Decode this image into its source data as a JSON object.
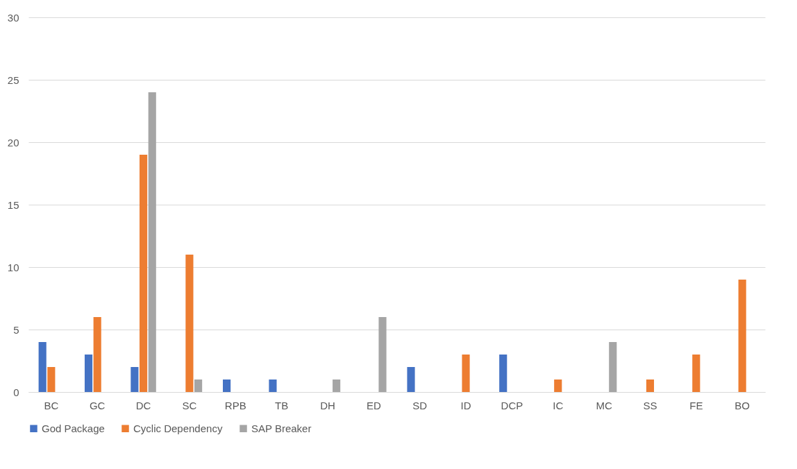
{
  "chart_data": {
    "type": "bar",
    "categories": [
      "BC",
      "GC",
      "DC",
      "SC",
      "RPB",
      "TB",
      "DH",
      "ED",
      "SD",
      "ID",
      "DCP",
      "IC",
      "MC",
      "SS",
      "FE",
      "BO"
    ],
    "series": [
      {
        "name": "God Package",
        "color": "#4472c4",
        "values": [
          4,
          3,
          2,
          0,
          1,
          1,
          0,
          0,
          2,
          0,
          3,
          0,
          0,
          0,
          0,
          0
        ]
      },
      {
        "name": "Cyclic Dependency",
        "color": "#ed7d31",
        "values": [
          2,
          6,
          19,
          11,
          0,
          0,
          0,
          0,
          0,
          3,
          0,
          1,
          0,
          1,
          3,
          9
        ]
      },
      {
        "name": "SAP Breaker",
        "color": "#a5a5a5",
        "values": [
          0,
          0,
          24,
          1,
          0,
          0,
          1,
          6,
          0,
          0,
          0,
          0,
          4,
          0,
          0,
          0
        ]
      }
    ],
    "ylim": [
      0,
      30
    ],
    "yticks": [
      0,
      5,
      10,
      15,
      20,
      25,
      30
    ],
    "grid": "y",
    "legend": "bottom"
  }
}
